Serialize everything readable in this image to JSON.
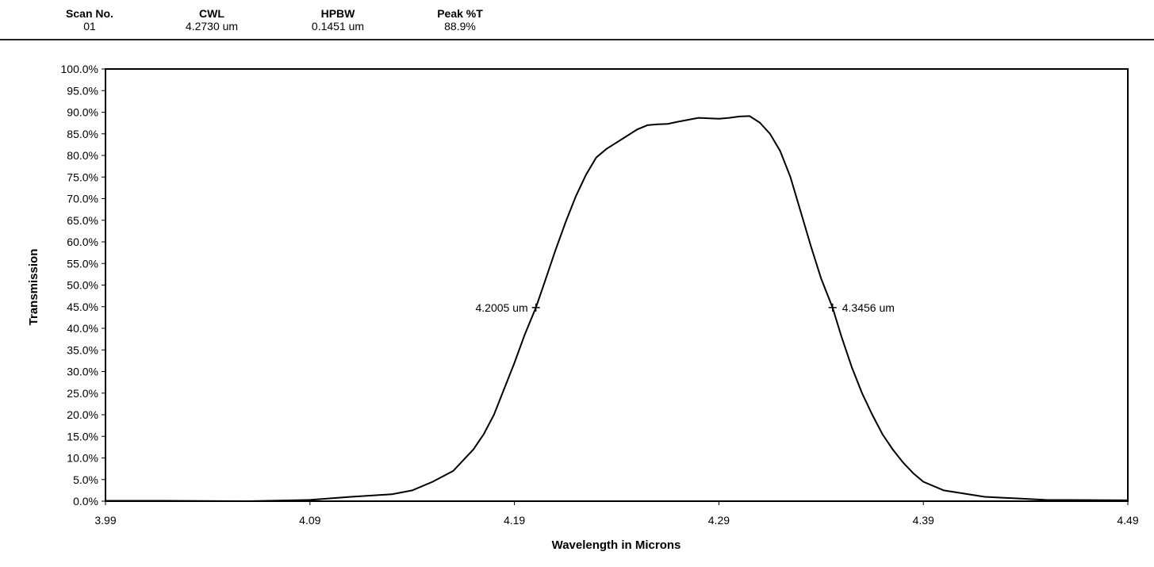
{
  "header": {
    "scan_no": {
      "label": "Scan No.",
      "value": "01"
    },
    "cwl": {
      "label": "CWL",
      "value": "4.2730 um"
    },
    "hpbw": {
      "label": "HPBW",
      "value": "0.1451 um"
    },
    "peak": {
      "label": "Peak %T",
      "value": "88.9%"
    }
  },
  "chart_data": {
    "type": "line",
    "title": "",
    "xlabel": "Wavelength in Microns",
    "ylabel": "Transmission",
    "xlim": [
      3.99,
      4.49
    ],
    "ylim": [
      0,
      100
    ],
    "xticks": [
      3.99,
      4.09,
      4.19,
      4.29,
      4.39,
      4.49
    ],
    "xtick_labels": [
      "3.99",
      "4.09",
      "4.19",
      "4.29",
      "4.39",
      "4.49"
    ],
    "yticks": [
      0,
      5,
      10,
      15,
      20,
      25,
      30,
      35,
      40,
      45,
      50,
      55,
      60,
      65,
      70,
      75,
      80,
      85,
      90,
      95,
      100
    ],
    "ytick_labels": [
      "0.0%",
      "5.0%",
      "10.0%",
      "15.0%",
      "20.0%",
      "25.0%",
      "30.0%",
      "35.0%",
      "40.0%",
      "45.0%",
      "50.0%",
      "55.0%",
      "60.0%",
      "65.0%",
      "70.0%",
      "75.0%",
      "80.0%",
      "85.0%",
      "90.0%",
      "95.0%",
      "100.0%"
    ],
    "grid": false,
    "legend": "none",
    "series": [
      {
        "x": [
          3.99,
          4.02,
          4.06,
          4.09,
          4.11,
          4.13,
          4.14,
          4.15,
          4.16,
          4.17,
          4.175,
          4.18,
          4.185,
          4.19,
          4.195,
          4.2005,
          4.205,
          4.21,
          4.215,
          4.22,
          4.225,
          4.23,
          4.235,
          4.24,
          4.245,
          4.25,
          4.255,
          4.26,
          4.265,
          4.27,
          4.28,
          4.29,
          4.295,
          4.3,
          4.305,
          4.31,
          4.315,
          4.32,
          4.325,
          4.33,
          4.335,
          4.34,
          4.3456,
          4.35,
          4.355,
          4.36,
          4.365,
          4.37,
          4.375,
          4.38,
          4.385,
          4.39,
          4.4,
          4.42,
          4.45,
          4.49
        ],
        "y": [
          0.1,
          0.1,
          0.0,
          0.3,
          1.0,
          1.6,
          2.5,
          4.5,
          7.0,
          12.0,
          15.5,
          20.0,
          26.0,
          32.0,
          38.5,
          44.8,
          51.0,
          58.0,
          64.5,
          70.5,
          75.5,
          79.5,
          81.5,
          83.0,
          84.5,
          86.0,
          87.0,
          87.2,
          87.3,
          87.8,
          88.7,
          88.5,
          88.7,
          89.0,
          89.1,
          87.6,
          85.0,
          81.0,
          75.0,
          67.0,
          59.0,
          51.5,
          44.8,
          38.0,
          31.0,
          25.0,
          20.0,
          15.5,
          12.0,
          9.0,
          6.5,
          4.5,
          2.5,
          1.0,
          0.3,
          0.2
        ]
      }
    ],
    "annotations": [
      {
        "x": 4.2005,
        "y": 44.8,
        "text": "4.2005 um",
        "side": "left"
      },
      {
        "x": 4.3456,
        "y": 44.8,
        "text": "4.3456 um",
        "side": "right"
      }
    ]
  }
}
